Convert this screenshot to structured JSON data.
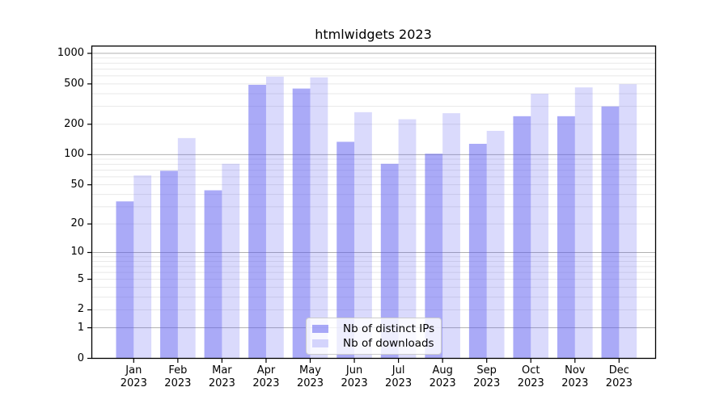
{
  "chart_data": {
    "type": "bar",
    "title": "htmlwidgets 2023",
    "categories": [
      "Jan",
      "Feb",
      "Mar",
      "Apr",
      "May",
      "Jun",
      "Jul",
      "Aug",
      "Sep",
      "Oct",
      "Nov",
      "Dec"
    ],
    "year_label": "2023",
    "series": [
      {
        "name": "Nb of distinct IPs",
        "values": [
          34,
          69,
          44,
          490,
          450,
          134,
          81,
          102,
          128,
          240,
          240,
          300
        ],
        "color": "rgba(85,85,240,0.5)"
      },
      {
        "name": "Nb of downloads",
        "values": [
          62,
          146,
          81,
          590,
          580,
          263,
          224,
          257,
          172,
          400,
          462,
          497
        ],
        "color": "rgba(85,85,240,0.22)"
      }
    ],
    "xlabel": "",
    "ylabel": "",
    "yscale": "log1p",
    "ylim": [
      0,
      1180
    ],
    "yticks": [
      "1000",
      "500",
      "200",
      "100",
      "50",
      "20",
      "10",
      "5",
      "2",
      "1",
      "0"
    ],
    "grid": {
      "major_lines": [
        1,
        10,
        100,
        1000
      ],
      "minor_multipliers": [
        2,
        3,
        4,
        5,
        6,
        7,
        8,
        9
      ],
      "minor_decades": [
        1,
        10,
        100
      ]
    },
    "legend_position": "inside bottom-center"
  },
  "style": {
    "major_grid_color": "#b0b0b0",
    "minor_grid_color": "#e8e8e8",
    "axis_color": "#000000",
    "text_color": "#000000",
    "legend_border_color": "#cccccc",
    "legend_bg": "rgba(255,255,255,0.8)",
    "background": "#ffffff"
  }
}
